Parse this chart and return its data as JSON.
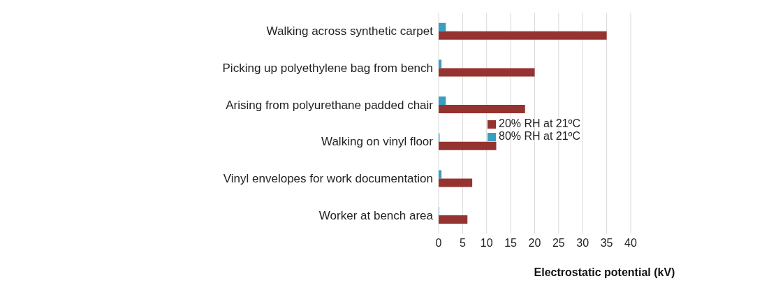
{
  "chart_data": {
    "type": "bar",
    "orientation": "horizontal",
    "xlabel": "Electrostatic potential (kV)",
    "categories": [
      "Walking across synthetic carpet",
      "Picking up polyethylene bag from bench",
      "Arising from polyurethane padded chair",
      "Walking on vinyl floor",
      "Vinyl envelopes for work documentation",
      "Worker at bench area"
    ],
    "series": [
      {
        "name": "80% RH at 21ºC",
        "color": "#3a9fbf",
        "values": [
          1.5,
          0.6,
          1.5,
          0.2,
          0.6,
          0.1
        ]
      },
      {
        "name": "20% RH at 21ºC",
        "color": "#953330",
        "values": [
          35,
          20,
          18,
          12,
          7,
          6
        ]
      }
    ],
    "xlim": [
      0,
      40
    ],
    "xticks": [
      0,
      5,
      10,
      15,
      20,
      25,
      30,
      35,
      40
    ],
    "grid": "x",
    "legend": "right"
  }
}
